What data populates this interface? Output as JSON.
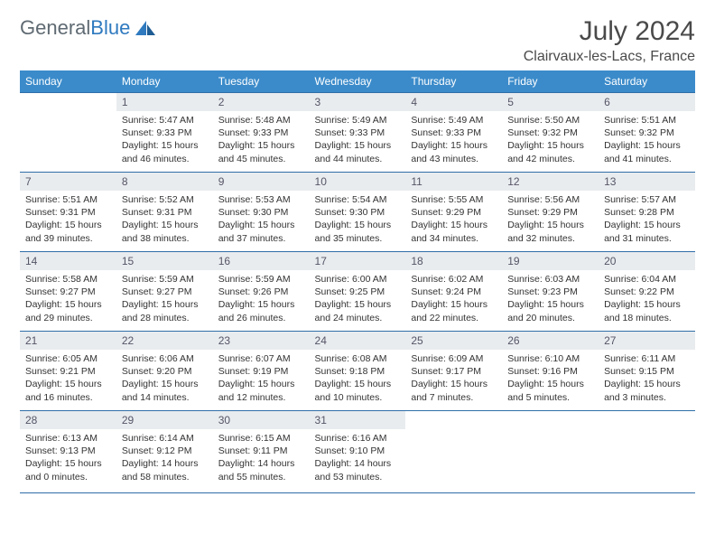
{
  "logo": {
    "textA": "General",
    "textB": "Blue"
  },
  "title": "July 2024",
  "location": "Clairvaux-les-Lacs, France",
  "colors": {
    "header_bg": "#3b8bca",
    "header_text": "#ffffff",
    "daynum_bg": "#e9ecef",
    "row_border": "#2f6fa8",
    "body_text": "#333333",
    "logo_gray": "#5f6a72",
    "logo_blue": "#2f7abf"
  },
  "daynames": [
    "Sunday",
    "Monday",
    "Tuesday",
    "Wednesday",
    "Thursday",
    "Friday",
    "Saturday"
  ],
  "weeks": [
    [
      null,
      {
        "n": "1",
        "sr": "Sunrise: 5:47 AM",
        "ss": "Sunset: 9:33 PM",
        "dl": "Daylight: 15 hours and 46 minutes."
      },
      {
        "n": "2",
        "sr": "Sunrise: 5:48 AM",
        "ss": "Sunset: 9:33 PM",
        "dl": "Daylight: 15 hours and 45 minutes."
      },
      {
        "n": "3",
        "sr": "Sunrise: 5:49 AM",
        "ss": "Sunset: 9:33 PM",
        "dl": "Daylight: 15 hours and 44 minutes."
      },
      {
        "n": "4",
        "sr": "Sunrise: 5:49 AM",
        "ss": "Sunset: 9:33 PM",
        "dl": "Daylight: 15 hours and 43 minutes."
      },
      {
        "n": "5",
        "sr": "Sunrise: 5:50 AM",
        "ss": "Sunset: 9:32 PM",
        "dl": "Daylight: 15 hours and 42 minutes."
      },
      {
        "n": "6",
        "sr": "Sunrise: 5:51 AM",
        "ss": "Sunset: 9:32 PM",
        "dl": "Daylight: 15 hours and 41 minutes."
      }
    ],
    [
      {
        "n": "7",
        "sr": "Sunrise: 5:51 AM",
        "ss": "Sunset: 9:31 PM",
        "dl": "Daylight: 15 hours and 39 minutes."
      },
      {
        "n": "8",
        "sr": "Sunrise: 5:52 AM",
        "ss": "Sunset: 9:31 PM",
        "dl": "Daylight: 15 hours and 38 minutes."
      },
      {
        "n": "9",
        "sr": "Sunrise: 5:53 AM",
        "ss": "Sunset: 9:30 PM",
        "dl": "Daylight: 15 hours and 37 minutes."
      },
      {
        "n": "10",
        "sr": "Sunrise: 5:54 AM",
        "ss": "Sunset: 9:30 PM",
        "dl": "Daylight: 15 hours and 35 minutes."
      },
      {
        "n": "11",
        "sr": "Sunrise: 5:55 AM",
        "ss": "Sunset: 9:29 PM",
        "dl": "Daylight: 15 hours and 34 minutes."
      },
      {
        "n": "12",
        "sr": "Sunrise: 5:56 AM",
        "ss": "Sunset: 9:29 PM",
        "dl": "Daylight: 15 hours and 32 minutes."
      },
      {
        "n": "13",
        "sr": "Sunrise: 5:57 AM",
        "ss": "Sunset: 9:28 PM",
        "dl": "Daylight: 15 hours and 31 minutes."
      }
    ],
    [
      {
        "n": "14",
        "sr": "Sunrise: 5:58 AM",
        "ss": "Sunset: 9:27 PM",
        "dl": "Daylight: 15 hours and 29 minutes."
      },
      {
        "n": "15",
        "sr": "Sunrise: 5:59 AM",
        "ss": "Sunset: 9:27 PM",
        "dl": "Daylight: 15 hours and 28 minutes."
      },
      {
        "n": "16",
        "sr": "Sunrise: 5:59 AM",
        "ss": "Sunset: 9:26 PM",
        "dl": "Daylight: 15 hours and 26 minutes."
      },
      {
        "n": "17",
        "sr": "Sunrise: 6:00 AM",
        "ss": "Sunset: 9:25 PM",
        "dl": "Daylight: 15 hours and 24 minutes."
      },
      {
        "n": "18",
        "sr": "Sunrise: 6:02 AM",
        "ss": "Sunset: 9:24 PM",
        "dl": "Daylight: 15 hours and 22 minutes."
      },
      {
        "n": "19",
        "sr": "Sunrise: 6:03 AM",
        "ss": "Sunset: 9:23 PM",
        "dl": "Daylight: 15 hours and 20 minutes."
      },
      {
        "n": "20",
        "sr": "Sunrise: 6:04 AM",
        "ss": "Sunset: 9:22 PM",
        "dl": "Daylight: 15 hours and 18 minutes."
      }
    ],
    [
      {
        "n": "21",
        "sr": "Sunrise: 6:05 AM",
        "ss": "Sunset: 9:21 PM",
        "dl": "Daylight: 15 hours and 16 minutes."
      },
      {
        "n": "22",
        "sr": "Sunrise: 6:06 AM",
        "ss": "Sunset: 9:20 PM",
        "dl": "Daylight: 15 hours and 14 minutes."
      },
      {
        "n": "23",
        "sr": "Sunrise: 6:07 AM",
        "ss": "Sunset: 9:19 PM",
        "dl": "Daylight: 15 hours and 12 minutes."
      },
      {
        "n": "24",
        "sr": "Sunrise: 6:08 AM",
        "ss": "Sunset: 9:18 PM",
        "dl": "Daylight: 15 hours and 10 minutes."
      },
      {
        "n": "25",
        "sr": "Sunrise: 6:09 AM",
        "ss": "Sunset: 9:17 PM",
        "dl": "Daylight: 15 hours and 7 minutes."
      },
      {
        "n": "26",
        "sr": "Sunrise: 6:10 AM",
        "ss": "Sunset: 9:16 PM",
        "dl": "Daylight: 15 hours and 5 minutes."
      },
      {
        "n": "27",
        "sr": "Sunrise: 6:11 AM",
        "ss": "Sunset: 9:15 PM",
        "dl": "Daylight: 15 hours and 3 minutes."
      }
    ],
    [
      {
        "n": "28",
        "sr": "Sunrise: 6:13 AM",
        "ss": "Sunset: 9:13 PM",
        "dl": "Daylight: 15 hours and 0 minutes."
      },
      {
        "n": "29",
        "sr": "Sunrise: 6:14 AM",
        "ss": "Sunset: 9:12 PM",
        "dl": "Daylight: 14 hours and 58 minutes."
      },
      {
        "n": "30",
        "sr": "Sunrise: 6:15 AM",
        "ss": "Sunset: 9:11 PM",
        "dl": "Daylight: 14 hours and 55 minutes."
      },
      {
        "n": "31",
        "sr": "Sunrise: 6:16 AM",
        "ss": "Sunset: 9:10 PM",
        "dl": "Daylight: 14 hours and 53 minutes."
      },
      null,
      null,
      null
    ]
  ]
}
